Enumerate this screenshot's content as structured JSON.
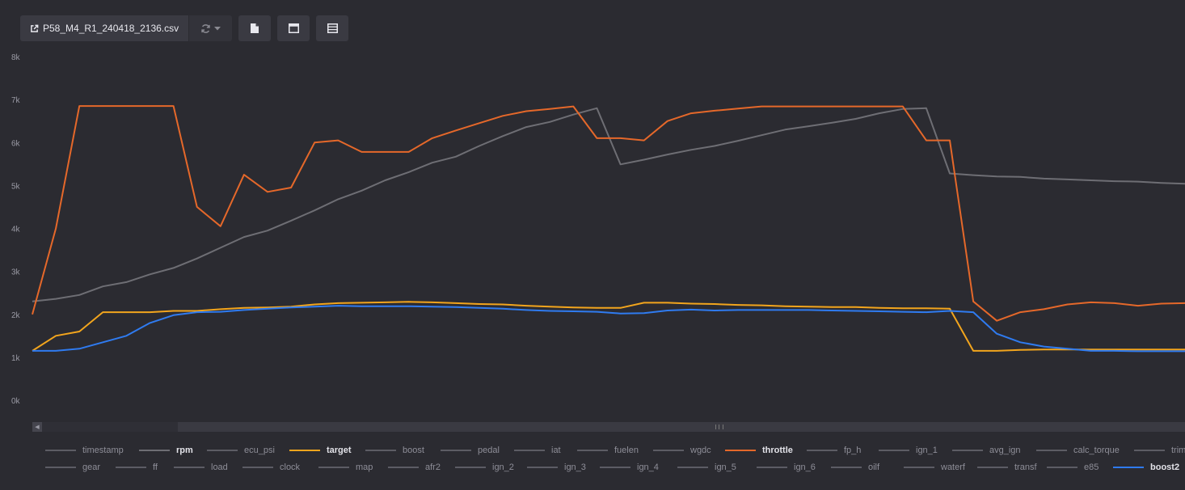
{
  "toolbar": {
    "file_name": "P58_M4_R1_240418_2136.csv"
  },
  "chart_data": {
    "type": "line",
    "ylim": [
      0,
      8000
    ],
    "y_ticks": [
      "0k",
      "1k",
      "2k",
      "3k",
      "4k",
      "5k",
      "6k",
      "7k",
      "8k"
    ],
    "n_points": 50,
    "series": [
      {
        "name": "rpm",
        "color": "#6e6e74",
        "values": [
          2300,
          2360,
          2450,
          2650,
          2750,
          2930,
          3080,
          3300,
          3550,
          3800,
          3950,
          4180,
          4420,
          4680,
          4880,
          5120,
          5310,
          5530,
          5670,
          5920,
          6150,
          6360,
          6480,
          6650,
          6800,
          5490,
          5600,
          5720,
          5830,
          5920,
          6040,
          6170,
          6300,
          6380,
          6460,
          6550,
          6680,
          6780,
          6800,
          5280,
          5240,
          5210,
          5200,
          5160,
          5140,
          5120,
          5100,
          5090,
          5060,
          5040
        ]
      },
      {
        "name": "throttle",
        "color": "#e5682a",
        "values": [
          2000,
          4000,
          6850,
          6850,
          6850,
          6850,
          6850,
          4500,
          4050,
          5250,
          4850,
          4950,
          6000,
          6050,
          5780,
          5780,
          5780,
          6100,
          6280,
          6450,
          6620,
          6730,
          6780,
          6840,
          6100,
          6100,
          6050,
          6500,
          6680,
          6740,
          6790,
          6840,
          6840,
          6840,
          6840,
          6840,
          6840,
          6840,
          6050,
          6050,
          2300,
          1850,
          2050,
          2120,
          2230,
          2280,
          2260,
          2200,
          2250,
          2260
        ]
      },
      {
        "name": "target",
        "color": "#f2a51d",
        "values": [
          1150,
          1500,
          1600,
          2050,
          2050,
          2050,
          2080,
          2080,
          2120,
          2150,
          2160,
          2180,
          2230,
          2260,
          2270,
          2280,
          2290,
          2280,
          2260,
          2240,
          2230,
          2200,
          2180,
          2160,
          2150,
          2150,
          2270,
          2270,
          2250,
          2240,
          2220,
          2210,
          2190,
          2180,
          2170,
          2170,
          2150,
          2140,
          2140,
          2130,
          1150,
          1150,
          1170,
          1180,
          1180,
          1180,
          1180,
          1180,
          1180,
          1180
        ]
      },
      {
        "name": "boost2",
        "color": "#2f7bf0",
        "values": [
          1150,
          1150,
          1200,
          1350,
          1500,
          1800,
          1980,
          2050,
          2060,
          2100,
          2130,
          2160,
          2180,
          2200,
          2190,
          2190,
          2190,
          2180,
          2170,
          2150,
          2130,
          2100,
          2080,
          2070,
          2060,
          2020,
          2030,
          2090,
          2110,
          2090,
          2100,
          2100,
          2100,
          2100,
          2090,
          2080,
          2070,
          2060,
          2050,
          2080,
          2050,
          1550,
          1350,
          1250,
          1200,
          1150,
          1150,
          1140,
          1140,
          1140
        ]
      }
    ]
  },
  "legend": {
    "row1": [
      {
        "label": "timestamp",
        "active": false,
        "color": ""
      },
      {
        "label": "rpm",
        "active": true,
        "color": "#6e6e74"
      },
      {
        "label": "ecu_psi",
        "active": false,
        "color": ""
      },
      {
        "label": "target",
        "active": true,
        "color": "#f2a51d"
      },
      {
        "label": "boost",
        "active": false,
        "color": ""
      },
      {
        "label": "pedal",
        "active": false,
        "color": ""
      },
      {
        "label": "iat",
        "active": false,
        "color": ""
      },
      {
        "label": "fuelen",
        "active": false,
        "color": ""
      },
      {
        "label": "wgdc",
        "active": false,
        "color": ""
      },
      {
        "label": "throttle",
        "active": true,
        "color": "#e5682a"
      },
      {
        "label": "fp_h",
        "active": false,
        "color": ""
      },
      {
        "label": "ign_1",
        "active": false,
        "color": ""
      },
      {
        "label": "avg_ign",
        "active": false,
        "color": ""
      },
      {
        "label": "calc_torque",
        "active": false,
        "color": ""
      },
      {
        "label": "trim",
        "active": false,
        "color": ""
      }
    ],
    "row2": [
      {
        "label": "gear",
        "active": false,
        "color": ""
      },
      {
        "label": "ff",
        "active": false,
        "color": ""
      },
      {
        "label": "load",
        "active": false,
        "color": ""
      },
      {
        "label": "clock",
        "active": false,
        "color": ""
      },
      {
        "label": "map",
        "active": false,
        "color": ""
      },
      {
        "label": "afr2",
        "active": false,
        "color": ""
      },
      {
        "label": "ign_2",
        "active": false,
        "color": ""
      },
      {
        "label": "ign_3",
        "active": false,
        "color": ""
      },
      {
        "label": "ign_4",
        "active": false,
        "color": ""
      },
      {
        "label": "ign_5",
        "active": false,
        "color": ""
      },
      {
        "label": "ign_6",
        "active": false,
        "color": ""
      },
      {
        "label": "oilf",
        "active": false,
        "color": ""
      },
      {
        "label": "waterf",
        "active": false,
        "color": ""
      },
      {
        "label": "transf",
        "active": false,
        "color": ""
      },
      {
        "label": "e85",
        "active": false,
        "color": ""
      },
      {
        "label": "boost2",
        "active": true,
        "color": "#2f7bf0"
      }
    ]
  }
}
